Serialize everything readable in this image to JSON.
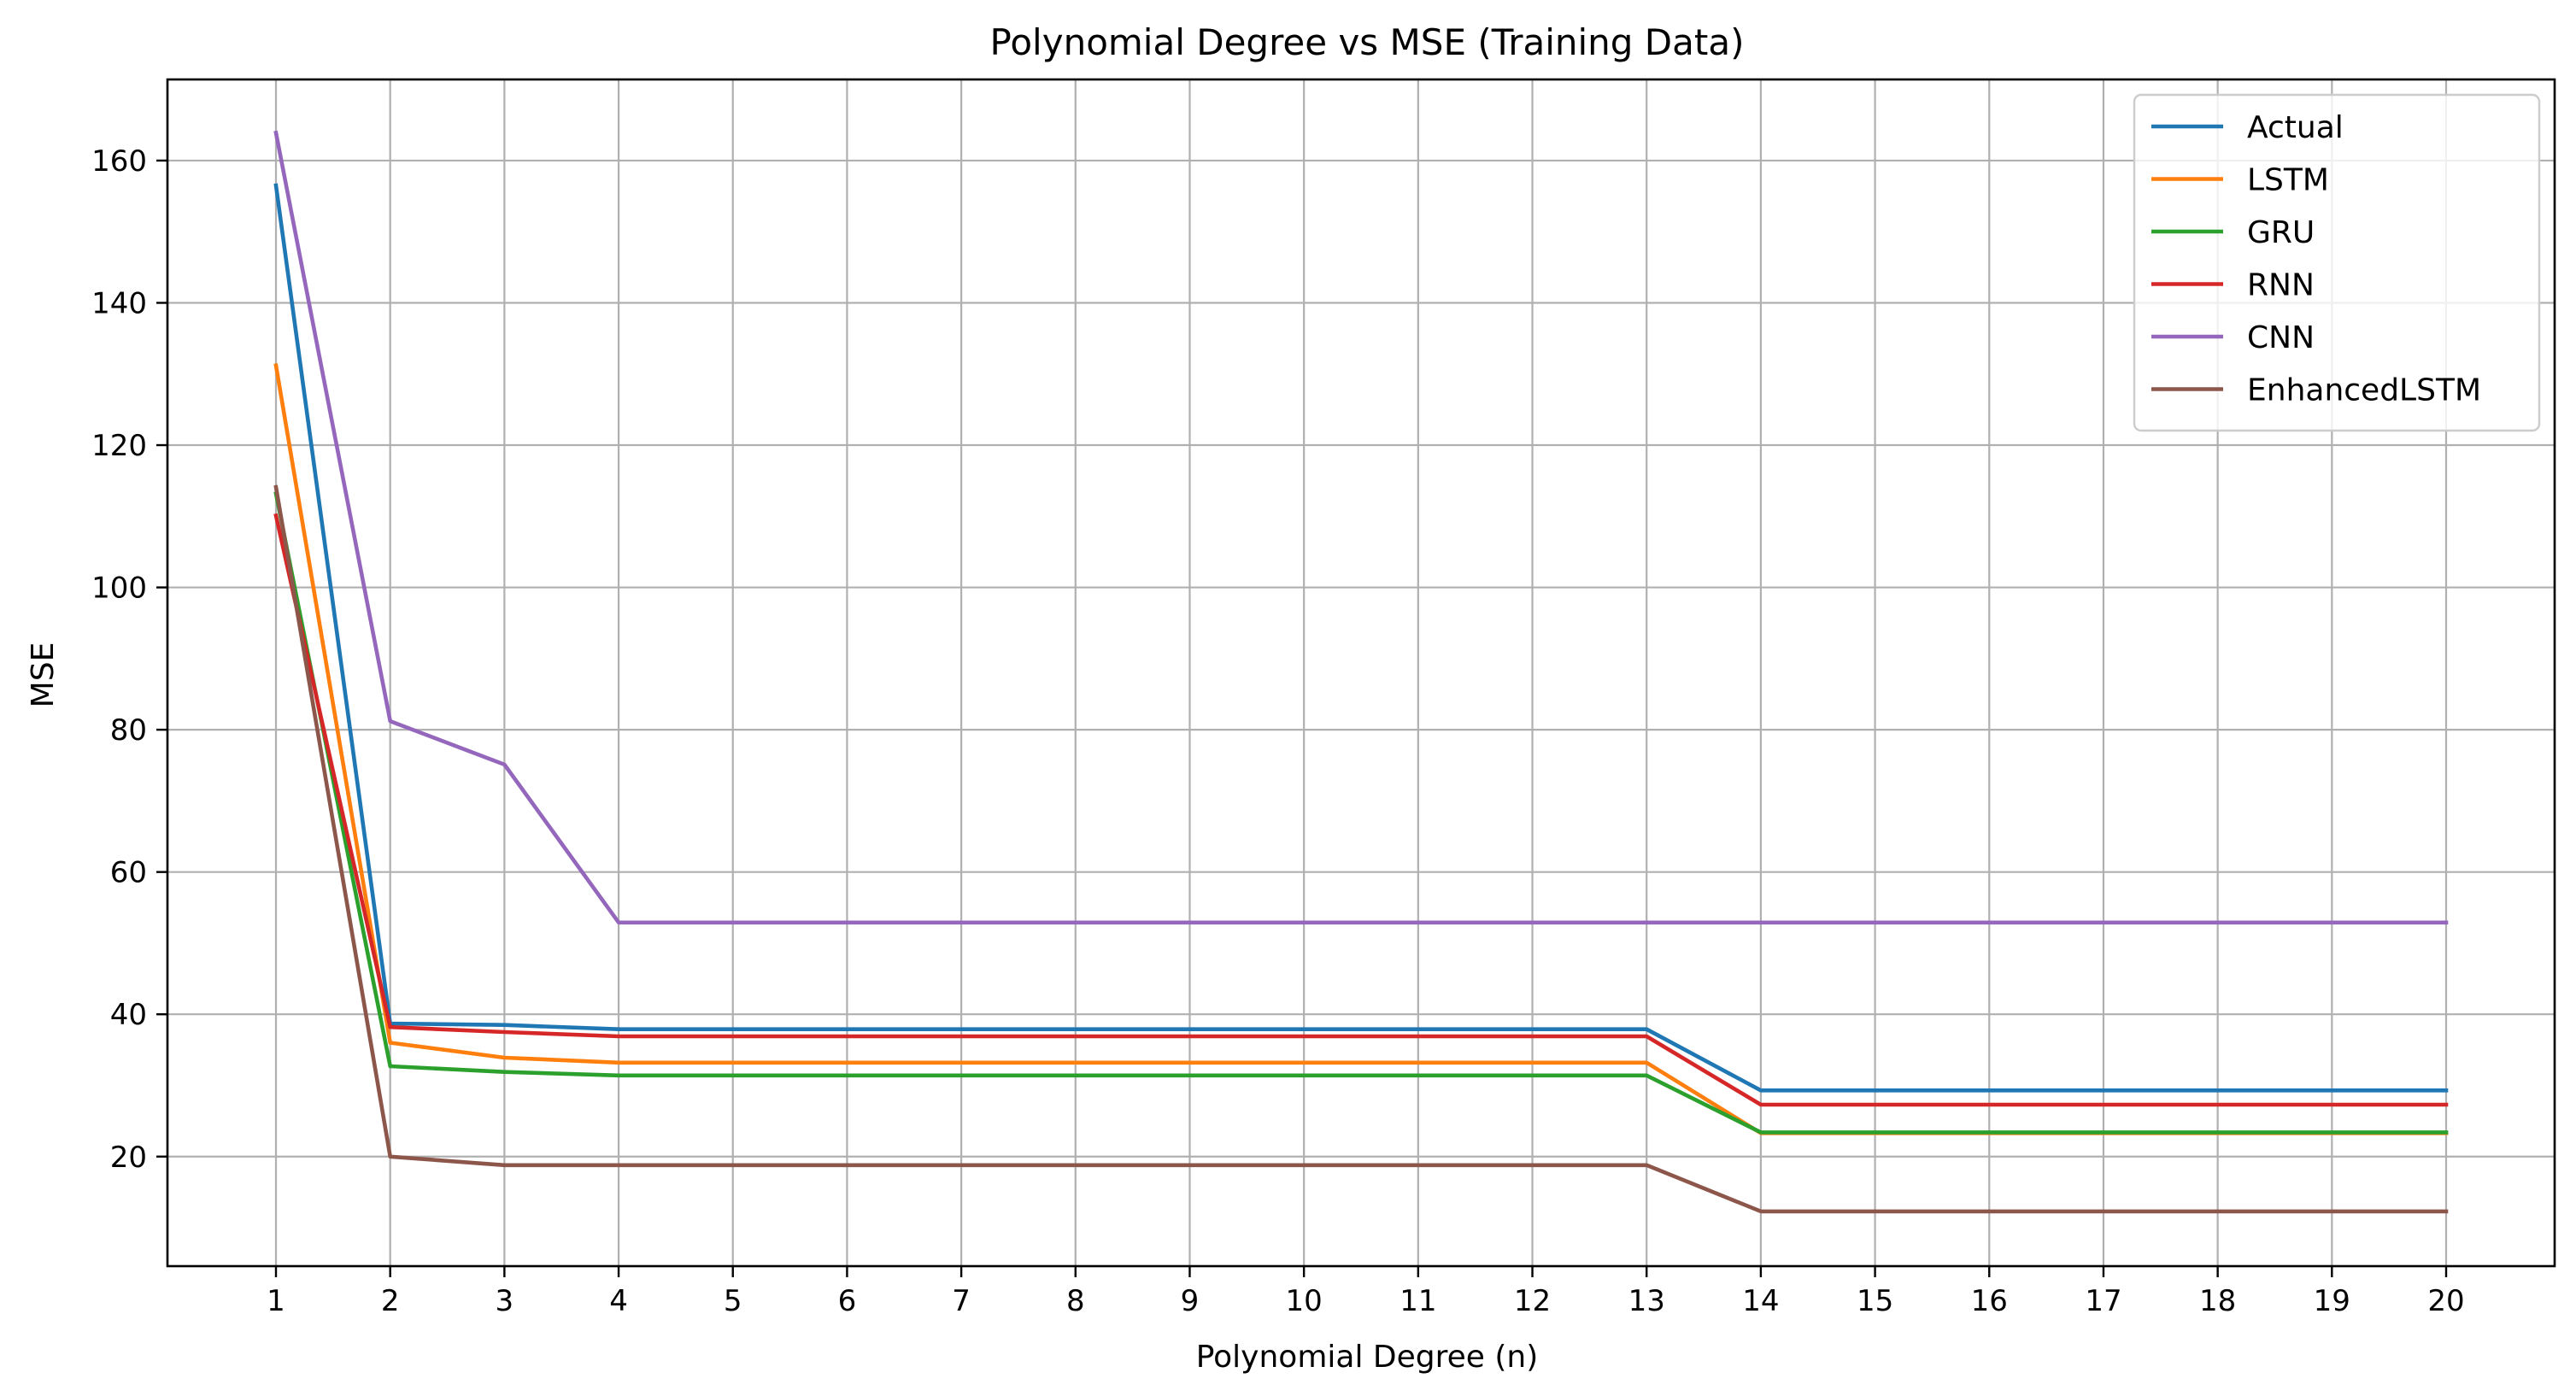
{
  "chart_data": {
    "type": "line",
    "title": "Polynomial Degree vs MSE (Training Data)",
    "xlabel": "Polynomial Degree (n)",
    "ylabel": "MSE",
    "x": [
      1,
      2,
      3,
      4,
      5,
      6,
      7,
      8,
      9,
      10,
      11,
      12,
      13,
      14,
      15,
      16,
      17,
      18,
      19,
      20
    ],
    "x_ticks": [
      "1",
      "2",
      "3",
      "4",
      "5",
      "6",
      "7",
      "8",
      "9",
      "10",
      "11",
      "12",
      "13",
      "14",
      "15",
      "16",
      "17",
      "18",
      "19",
      "20"
    ],
    "xlim": [
      0.05,
      20.95
    ],
    "ylim": [
      4.6,
      171.4
    ],
    "y_ticks": [
      20,
      40,
      60,
      80,
      100,
      120,
      140,
      160
    ],
    "y_tick_labels": [
      "20",
      "40",
      "60",
      "80",
      "100",
      "120",
      "140",
      "160"
    ],
    "grid": true,
    "legend_position": "top-right",
    "series": [
      {
        "name": "Actual",
        "color": "#1f77b4",
        "values": [
          156.5,
          38.7,
          38.5,
          37.9,
          37.9,
          37.9,
          37.9,
          37.9,
          37.9,
          37.9,
          37.9,
          37.9,
          37.9,
          29.3,
          29.3,
          29.3,
          29.3,
          29.3,
          29.3,
          29.3
        ]
      },
      {
        "name": "LSTM",
        "color": "#ff7f0e",
        "values": [
          131.2,
          36.0,
          33.9,
          33.2,
          33.2,
          33.2,
          33.2,
          33.2,
          33.2,
          33.2,
          33.2,
          33.2,
          33.2,
          23.3,
          23.3,
          23.3,
          23.3,
          23.3,
          23.3,
          23.3
        ]
      },
      {
        "name": "GRU",
        "color": "#2ca02c",
        "values": [
          113.2,
          32.7,
          31.9,
          31.4,
          31.4,
          31.4,
          31.4,
          31.4,
          31.4,
          31.4,
          31.4,
          31.4,
          31.4,
          23.4,
          23.4,
          23.4,
          23.4,
          23.4,
          23.4,
          23.4
        ]
      },
      {
        "name": "RNN",
        "color": "#d62728",
        "values": [
          110.1,
          38.2,
          37.5,
          36.9,
          36.9,
          36.9,
          36.9,
          36.9,
          36.9,
          36.9,
          36.9,
          36.9,
          36.9,
          27.3,
          27.3,
          27.3,
          27.3,
          27.3,
          27.3,
          27.3
        ]
      },
      {
        "name": "CNN",
        "color": "#9467bd",
        "values": [
          163.9,
          81.2,
          75.1,
          52.9,
          52.9,
          52.9,
          52.9,
          52.9,
          52.9,
          52.9,
          52.9,
          52.9,
          52.9,
          52.9,
          52.9,
          52.9,
          52.9,
          52.9,
          52.9,
          52.9
        ]
      },
      {
        "name": "EnhancedLSTM",
        "color": "#8c564b",
        "values": [
          114.1,
          20.0,
          18.8,
          18.8,
          18.8,
          18.8,
          18.8,
          18.8,
          18.8,
          18.8,
          18.8,
          18.8,
          18.8,
          12.3,
          12.3,
          12.3,
          12.3,
          12.3,
          12.3,
          12.3
        ]
      }
    ]
  }
}
